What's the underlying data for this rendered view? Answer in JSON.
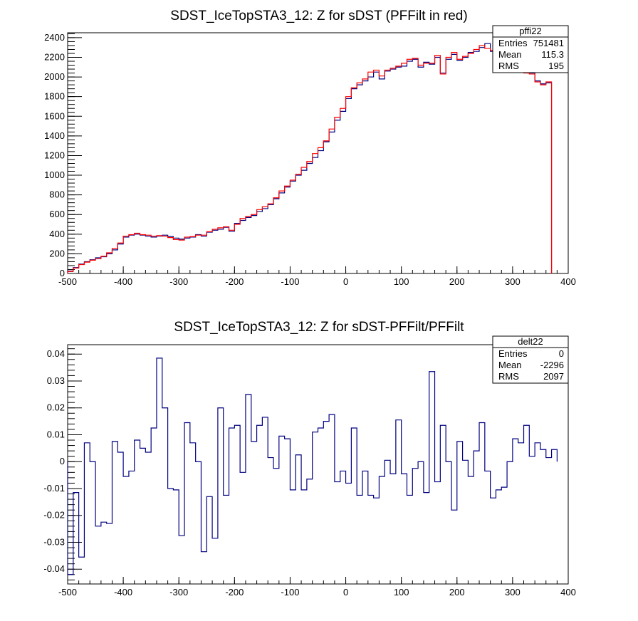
{
  "chart_data": [
    {
      "type": "histogram",
      "title": "SDST_IceTopSTA3_12: Z for sDST (PFFilt in red)",
      "xlim": [
        -500,
        400
      ],
      "ylim": [
        0,
        2450
      ],
      "x_ticks": [
        -500,
        -400,
        -300,
        -200,
        -100,
        0,
        100,
        200,
        300,
        400
      ],
      "y_ticks": [
        0,
        200,
        400,
        600,
        800,
        1000,
        1200,
        1400,
        1600,
        1800,
        2000,
        2200,
        2400
      ],
      "bin_edges_start": -500,
      "bin_width": 10,
      "stats_box": {
        "name": "pffi22",
        "rows": [
          {
            "label": "Entries",
            "value": "751481"
          },
          {
            "label": "Mean",
            "value": "115.3"
          },
          {
            "label": "RMS",
            "value": "195"
          }
        ]
      },
      "series": [
        {
          "color": "#000080",
          "values": [
            25,
            60,
            95,
            120,
            140,
            160,
            170,
            200,
            240,
            300,
            370,
            390,
            400,
            390,
            380,
            370,
            380,
            390,
            375,
            360,
            350,
            360,
            370,
            395,
            380,
            420,
            440,
            450,
            470,
            430,
            510,
            540,
            570,
            590,
            630,
            660,
            700,
            760,
            820,
            880,
            940,
            1000,
            1050,
            1120,
            1180,
            1250,
            1340,
            1440,
            1560,
            1650,
            1780,
            1880,
            1920,
            1960,
            2000,
            2050,
            1980,
            2060,
            2080,
            2100,
            2110,
            2160,
            2180,
            2100,
            2150,
            2130,
            2200,
            2040,
            2180,
            2230,
            2170,
            2200,
            2250,
            2260,
            2300,
            2340,
            2260,
            2290,
            2170,
            2120,
            2080,
            2070,
            2050,
            2040,
            1960,
            1930,
            1940
          ]
        },
        {
          "color": "#ff0000",
          "values": [
            20,
            55,
            90,
            115,
            135,
            150,
            175,
            210,
            255,
            310,
            380,
            395,
            410,
            395,
            390,
            380,
            385,
            380,
            365,
            345,
            340,
            370,
            375,
            390,
            390,
            425,
            450,
            465,
            475,
            440,
            500,
            560,
            580,
            600,
            650,
            680,
            710,
            770,
            840,
            890,
            950,
            1010,
            1080,
            1140,
            1220,
            1280,
            1350,
            1470,
            1590,
            1680,
            1800,
            1890,
            1940,
            1980,
            2050,
            2070,
            2010,
            2070,
            2090,
            2110,
            2140,
            2180,
            2190,
            2120,
            2140,
            2140,
            2220,
            2030,
            2200,
            2250,
            2180,
            2210,
            2240,
            2280,
            2320,
            2290,
            2270,
            2280,
            2170,
            2130,
            2100,
            2060,
            2040,
            2030,
            1950,
            1920,
            1950
          ]
        }
      ]
    },
    {
      "type": "histogram",
      "title": "SDST_IceTopSTA3_12: Z for sDST-PFFilt/PFFilt",
      "xlim": [
        -500,
        400
      ],
      "ylim": [
        -0.0455,
        0.0435
      ],
      "x_ticks": [
        -500,
        -400,
        -300,
        -200,
        -100,
        0,
        100,
        200,
        300,
        400
      ],
      "y_ticks": [
        -0.04,
        -0.03,
        -0.02,
        -0.01,
        0,
        0.01,
        0.02,
        0.03,
        0.04
      ],
      "y_tick_labels": [
        "-0.04",
        "-0.03",
        "-0.02",
        "-0.01",
        "0",
        "0.01",
        "0.02",
        "0.03",
        "0.04"
      ],
      "bin_edges_start": -500,
      "bin_width": 10,
      "stats_box": {
        "name": "delt22",
        "rows": [
          {
            "label": "Entries",
            "value": "0"
          },
          {
            "label": "Mean",
            "value": "-2296"
          },
          {
            "label": "RMS",
            "value": "2097"
          }
        ]
      },
      "series": [
        {
          "color": "#000080",
          "values": [
            -0.042,
            -0.0115,
            -0.0355,
            0.007,
            0.0,
            -0.024,
            -0.0225,
            -0.023,
            0.0075,
            0.0035,
            -0.0055,
            -0.0035,
            0.008,
            0.005,
            0.0035,
            0.0125,
            0.0385,
            0.02,
            -0.01,
            -0.0105,
            -0.0275,
            0.0145,
            0.007,
            0.0,
            -0.0335,
            -0.013,
            -0.0285,
            0.02,
            -0.0125,
            0.0125,
            0.0135,
            -0.004,
            0.025,
            0.0075,
            0.0135,
            0.0165,
            0.0015,
            -0.0025,
            0.0095,
            0.0085,
            -0.0105,
            0.0025,
            -0.0105,
            -0.0065,
            0.011,
            0.0125,
            0.015,
            0.0175,
            -0.0075,
            -0.0035,
            -0.008,
            0.0125,
            -0.0125,
            -0.0035,
            -0.0125,
            -0.0135,
            -0.0055,
            0.0005,
            -0.0045,
            0.0155,
            -0.0045,
            -0.0125,
            -0.0025,
            0.0,
            -0.0115,
            0.0335,
            -0.0075,
            0.0135,
            0.0,
            -0.018,
            0.0075,
            0.0005,
            -0.0055,
            0.004,
            0.0145,
            -0.0035,
            -0.0135,
            -0.0105,
            -0.0095,
            0.0,
            0.0085,
            0.007,
            0.0135,
            0.002,
            0.007,
            0.0045,
            0.0015,
            0.0045
          ]
        }
      ]
    }
  ]
}
